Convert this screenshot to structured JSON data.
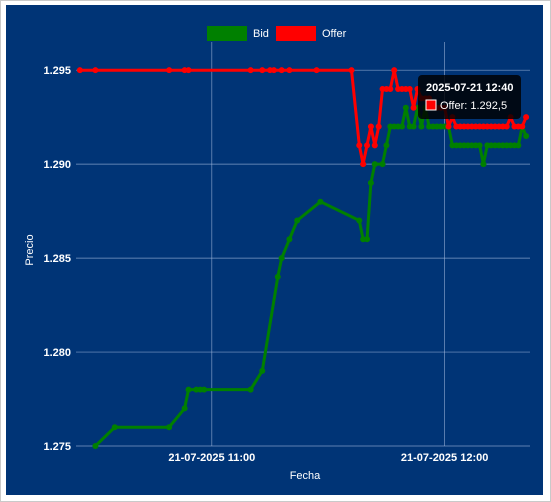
{
  "colors": {
    "background": "#003476",
    "grid": "#a8bde0",
    "bid": "#008000",
    "offer": "#ff0000"
  },
  "chart_data": {
    "type": "line",
    "xlabel": "Fecha",
    "ylabel": "Precio",
    "x_axis": {
      "min_time": "10:25",
      "max_time": "12:22",
      "ticks": [
        {
          "time": "11:00",
          "label": "21-07-2025 11:00"
        },
        {
          "time": "12:00",
          "label": "21-07-2025 12:00"
        }
      ]
    },
    "ylim": [
      1.275,
      1.2965
    ],
    "y_ticks": [
      1.275,
      1.28,
      1.285,
      1.29,
      1.295
    ],
    "y_tick_labels": [
      "1.275",
      "1.280",
      "1.285",
      "1.290",
      "1.295"
    ],
    "grid": true,
    "legend": {
      "placement": "top-center",
      "entries": [
        "Bid",
        "Offer"
      ]
    },
    "series": [
      {
        "name": "Bid",
        "color": "#008000",
        "points": [
          [
            "10:30",
            1.275
          ],
          [
            "10:35",
            1.276
          ],
          [
            "10:49",
            1.276
          ],
          [
            "10:53",
            1.277
          ],
          [
            "10:54",
            1.278
          ],
          [
            "10:56",
            1.278
          ],
          [
            "10:57",
            1.278
          ],
          [
            "10:58",
            1.278
          ],
          [
            "11:10",
            1.278
          ],
          [
            "11:13",
            1.279
          ],
          [
            "11:17",
            1.284
          ],
          [
            "11:18",
            1.285
          ],
          [
            "11:20",
            1.286
          ],
          [
            "11:22",
            1.287
          ],
          [
            "11:28",
            1.288
          ],
          [
            "11:38",
            1.287
          ],
          [
            "11:39",
            1.286
          ],
          [
            "11:40",
            1.286
          ],
          [
            "11:41",
            1.289
          ],
          [
            "11:42",
            1.29
          ],
          [
            "11:44",
            1.29
          ],
          [
            "11:45",
            1.291
          ],
          [
            "11:46",
            1.292
          ],
          [
            "11:47",
            1.292
          ],
          [
            "11:48",
            1.292
          ],
          [
            "11:49",
            1.292
          ],
          [
            "11:50",
            1.293
          ],
          [
            "11:51",
            1.292
          ],
          [
            "11:52",
            1.292
          ],
          [
            "11:53",
            1.293
          ],
          [
            "11:54",
            1.292
          ],
          [
            "11:55",
            1.293
          ],
          [
            "11:56",
            1.292
          ],
          [
            "11:57",
            1.292
          ],
          [
            "11:58",
            1.292
          ],
          [
            "11:59",
            1.292
          ],
          [
            "12:00",
            1.292
          ],
          [
            "12:01",
            1.292
          ],
          [
            "12:02",
            1.291
          ],
          [
            "12:03",
            1.291
          ],
          [
            "12:04",
            1.291
          ],
          [
            "12:05",
            1.291
          ],
          [
            "12:06",
            1.291
          ],
          [
            "12:07",
            1.291
          ],
          [
            "12:08",
            1.291
          ],
          [
            "12:09",
            1.291
          ],
          [
            "12:10",
            1.29
          ],
          [
            "12:11",
            1.291
          ],
          [
            "12:12",
            1.291
          ],
          [
            "12:13",
            1.291
          ],
          [
            "12:14",
            1.291
          ],
          [
            "12:15",
            1.291
          ],
          [
            "12:16",
            1.291
          ],
          [
            "12:17",
            1.291
          ],
          [
            "12:18",
            1.291
          ],
          [
            "12:19",
            1.291
          ],
          [
            "12:20",
            1.292
          ],
          [
            "12:21",
            1.2915
          ]
        ]
      },
      {
        "name": "Offer",
        "color": "#ff0000",
        "points": [
          [
            "10:26",
            1.295
          ],
          [
            "10:30",
            1.295
          ],
          [
            "10:49",
            1.295
          ],
          [
            "10:53",
            1.295
          ],
          [
            "10:54",
            1.295
          ],
          [
            "11:10",
            1.295
          ],
          [
            "11:13",
            1.295
          ],
          [
            "11:15",
            1.295
          ],
          [
            "11:16",
            1.295
          ],
          [
            "11:18",
            1.295
          ],
          [
            "11:20",
            1.295
          ],
          [
            "11:27",
            1.295
          ],
          [
            "11:36",
            1.295
          ],
          [
            "11:38",
            1.291
          ],
          [
            "11:39",
            1.29
          ],
          [
            "11:40",
            1.291
          ],
          [
            "11:41",
            1.292
          ],
          [
            "11:42",
            1.291
          ],
          [
            "11:43",
            1.292
          ],
          [
            "11:44",
            1.294
          ],
          [
            "11:45",
            1.294
          ],
          [
            "11:46",
            1.294
          ],
          [
            "11:47",
            1.295
          ],
          [
            "11:48",
            1.294
          ],
          [
            "11:49",
            1.294
          ],
          [
            "11:50",
            1.294
          ],
          [
            "11:51",
            1.294
          ],
          [
            "11:52",
            1.293
          ],
          [
            "11:53",
            1.294
          ],
          [
            "11:54",
            1.2935
          ],
          [
            "11:55",
            1.2935
          ],
          [
            "11:56",
            1.2935
          ],
          [
            "11:57",
            1.293
          ],
          [
            "11:58",
            1.293
          ],
          [
            "11:59",
            1.293
          ],
          [
            "12:00",
            1.293
          ],
          [
            "12:01",
            1.292
          ],
          [
            "12:02",
            1.2925
          ],
          [
            "12:03",
            1.292
          ],
          [
            "12:04",
            1.292
          ],
          [
            "12:05",
            1.292
          ],
          [
            "12:06",
            1.292
          ],
          [
            "12:07",
            1.292
          ],
          [
            "12:08",
            1.292
          ],
          [
            "12:09",
            1.292
          ],
          [
            "12:10",
            1.292
          ],
          [
            "12:11",
            1.292
          ],
          [
            "12:12",
            1.292
          ],
          [
            "12:13",
            1.292
          ],
          [
            "12:14",
            1.292
          ],
          [
            "12:15",
            1.292
          ],
          [
            "12:16",
            1.292
          ],
          [
            "12:17",
            1.2925
          ],
          [
            "12:18",
            1.292
          ],
          [
            "12:19",
            1.292
          ],
          [
            "12:20",
            1.292
          ],
          [
            "12:21",
            1.2925
          ]
        ]
      }
    ],
    "tooltip": {
      "title": "2025-07-21 12:40",
      "series": "Offer",
      "label": "Offer: 1.292,5",
      "marker_color": "#ff0000"
    }
  }
}
